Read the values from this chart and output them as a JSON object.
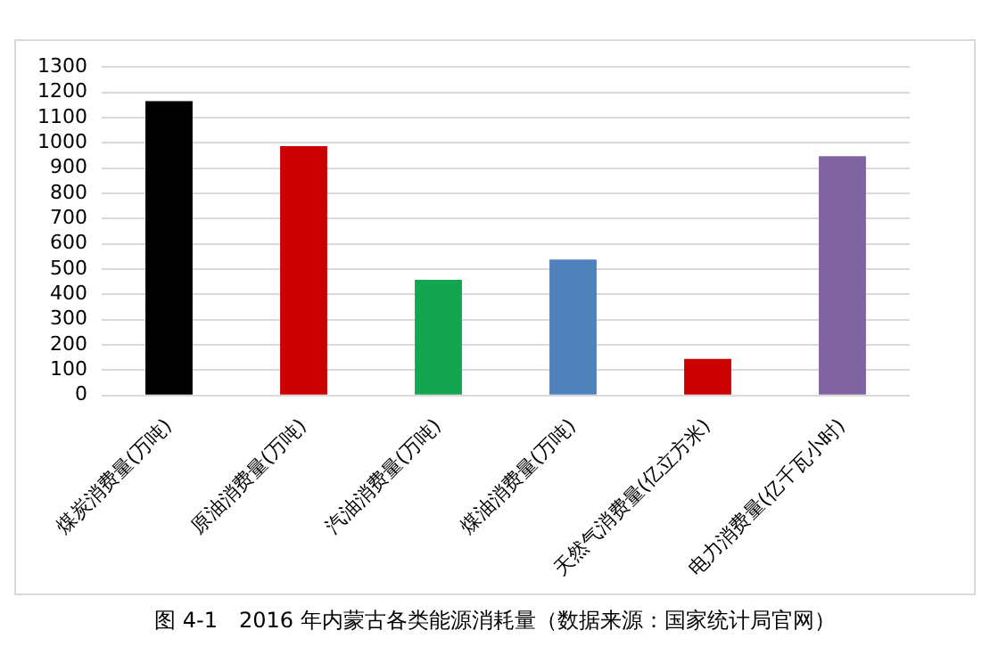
{
  "chart_data": {
    "type": "bar",
    "categories": [
      "煤炭消费量(万吨)",
      "原油消费量(万吨)",
      "汽油消费量(万吨)",
      "煤油消费量(万吨)",
      "天然气消费量(亿立方米)",
      "电力消费量(亿千瓦小时)"
    ],
    "values": [
      1165,
      987,
      457,
      538,
      144,
      947
    ],
    "colors": [
      "#000000",
      "#cc0000",
      "#14a550",
      "#4f81bd",
      "#cc0000",
      "#8064a2"
    ],
    "ylim": [
      0,
      1300
    ],
    "yticks": [
      0,
      100,
      200,
      300,
      400,
      500,
      600,
      700,
      800,
      900,
      1000,
      1100,
      1200,
      1300
    ],
    "grid": "y",
    "legend": false,
    "annotations": [
      "图 4-1　2016 年内蒙古各类能源消耗量（数据来源：国家统计局官网）"
    ]
  }
}
